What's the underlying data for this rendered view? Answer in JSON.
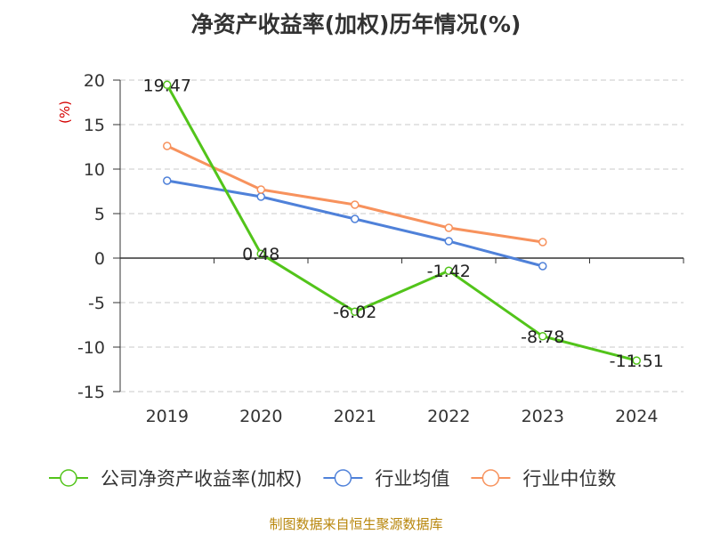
{
  "chart_data": {
    "type": "line",
    "title": "净资产收益率(加权)历年情况(%)",
    "ylabel": "(%)",
    "xlabel": "",
    "categories": [
      "2019",
      "2020",
      "2021",
      "2022",
      "2023",
      "2024"
    ],
    "ylim": [
      -15,
      20
    ],
    "yticks": [
      20,
      15,
      10,
      5,
      0,
      -5,
      -10,
      -15
    ],
    "grid": true,
    "legend_position": "bottom",
    "series": [
      {
        "name": "公司净资产收益率(加权)",
        "color": "#52c41a",
        "values": [
          19.47,
          0.48,
          -6.02,
          -1.42,
          -8.78,
          -11.51
        ],
        "labels": [
          "19.47",
          "0.48",
          "-6.02",
          "-1.42",
          "-8.78",
          "-11.51"
        ]
      },
      {
        "name": "行业均值",
        "color": "#4f81d9",
        "values": [
          8.7,
          6.9,
          4.4,
          1.9,
          -0.9,
          null
        ]
      },
      {
        "name": "行业中位数",
        "color": "#f7925d",
        "values": [
          12.6,
          7.7,
          6.0,
          3.4,
          1.8,
          null
        ]
      }
    ]
  },
  "source_text": "制图数据来自恒生聚源数据库"
}
